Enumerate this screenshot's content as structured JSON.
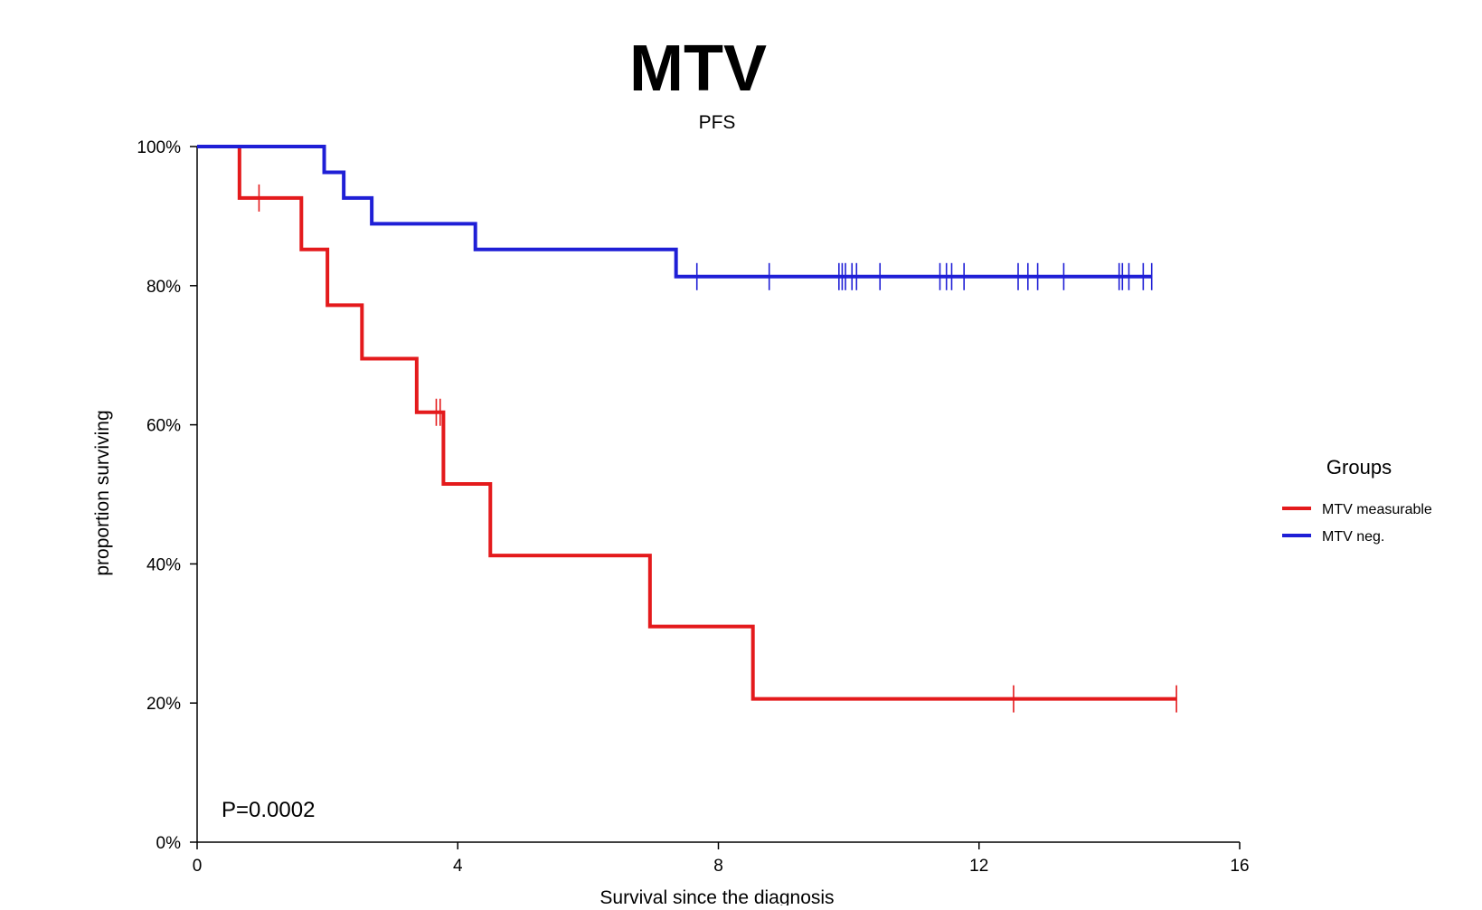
{
  "chart_data": {
    "type": "line",
    "subtype": "kaplan-meier step",
    "title": "MTV",
    "subtitle": "PFS",
    "xlabel": "Survival since the diagnosis",
    "ylabel": "proportion surviving",
    "xlim": [
      0,
      16
    ],
    "ylim": [
      0,
      1
    ],
    "x_ticks": [
      0,
      4,
      8,
      12,
      16
    ],
    "y_ticks": [
      0,
      0.2,
      0.4,
      0.6,
      0.8,
      1.0
    ],
    "y_tick_labels": [
      "0%",
      "20%",
      "40%",
      "60%",
      "80%",
      "100%"
    ],
    "grid": false,
    "annotation": "P=0.0002",
    "legend": {
      "title": "Groups",
      "position": "right"
    },
    "series": [
      {
        "name": "MTV measurable",
        "color": "#e41a1c",
        "steps": [
          [
            0,
            1.0
          ],
          [
            0.65,
            0.926
          ],
          [
            1.6,
            0.852
          ],
          [
            2.0,
            0.772
          ],
          [
            2.53,
            0.695
          ],
          [
            3.37,
            0.618
          ],
          [
            3.78,
            0.515
          ],
          [
            4.5,
            0.412
          ],
          [
            6.95,
            0.31
          ],
          [
            8.53,
            0.206
          ],
          [
            15.03,
            0.206
          ]
        ],
        "censored_times": [
          0.95,
          3.67,
          3.73,
          12.53,
          15.03
        ]
      },
      {
        "name": "MTV neg.",
        "color": "#1f1fd6",
        "steps": [
          [
            0,
            1.0
          ],
          [
            1.95,
            0.963
          ],
          [
            2.25,
            0.926
          ],
          [
            2.68,
            0.889
          ],
          [
            4.27,
            0.852
          ],
          [
            7.35,
            0.813
          ],
          [
            14.65,
            0.813
          ]
        ],
        "censored_times": [
          7.67,
          8.78,
          9.85,
          9.9,
          9.95,
          10.05,
          10.12,
          10.48,
          11.4,
          11.5,
          11.58,
          11.77,
          12.6,
          12.75,
          12.9,
          13.3,
          14.15,
          14.2,
          14.3,
          14.52,
          14.65
        ]
      }
    ]
  }
}
